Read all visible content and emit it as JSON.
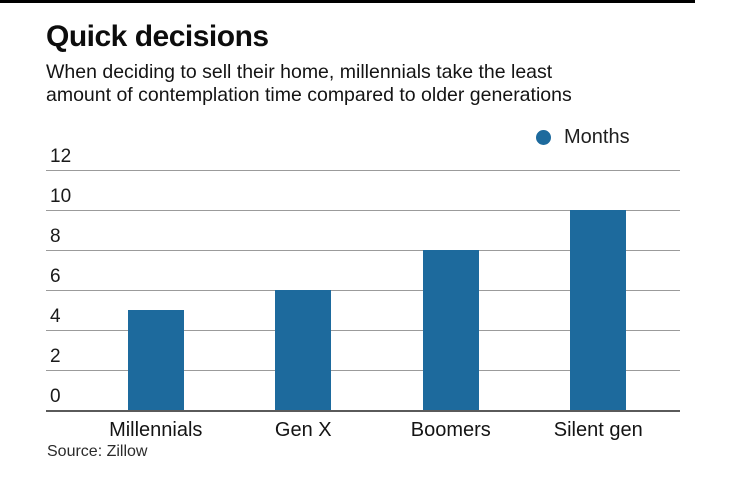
{
  "header": {
    "title": "Quick decisions",
    "subtitle_line1": "When deciding to sell their home, millennials take the least",
    "subtitle_line2": "amount of contemplation time compared to older generations"
  },
  "legend": {
    "label": "Months"
  },
  "source": {
    "label": "Source: Zillow"
  },
  "colors": {
    "bar_blue": "#1d6a9d",
    "gridline": "#9b9b9b",
    "baseline": "#5a5a5a",
    "top_rule": "#000000"
  },
  "chart_data": {
    "type": "bar",
    "title": "Quick decisions",
    "subtitle": "When deciding to sell their home, millennials take the least amount of contemplation time compared to older generations",
    "categories": [
      "Millennials",
      "Gen X",
      "Boomers",
      "Silent gen"
    ],
    "values": [
      5,
      6,
      8,
      10
    ],
    "series_name": "Months",
    "unit": "months",
    "xlabel": "",
    "ylabel": "",
    "ylim": [
      0,
      12
    ],
    "yticks": [
      0,
      2,
      4,
      6,
      8,
      10,
      12
    ],
    "grid": true,
    "legend_position": "top-right",
    "bar_color": "#1d6a9d",
    "source": "Source: Zillow"
  }
}
